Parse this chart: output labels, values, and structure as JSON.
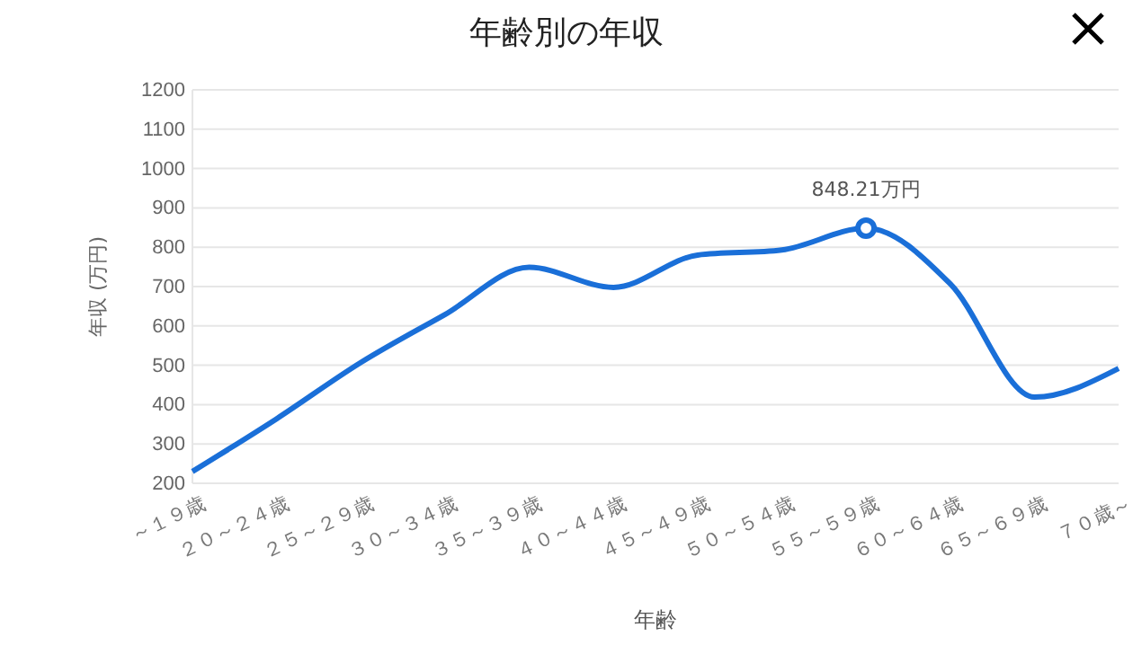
{
  "chart_data": {
    "type": "line",
    "title": "年齢別の年収",
    "xlabel": "年齢",
    "ylabel": "年収 (万円)",
    "categories": [
      "～１９歳",
      "２０～２４歳",
      "２５～２９歳",
      "３０～３４歳",
      "３５～３９歳",
      "４０～４４歳",
      "４５～４９歳",
      "５０～５４歳",
      "５５～５９歳",
      "６０～６４歳",
      "６５～６９歳",
      "７０歳～"
    ],
    "series": [
      {
        "color": "#1a6fd8",
        "values": [
          230,
          364,
          507,
          629,
          749,
          698,
          780,
          793,
          848.21,
          707,
          419,
          492
        ]
      }
    ],
    "ylim": [
      200,
      1200
    ],
    "yticks": [
      200,
      300,
      400,
      500,
      600,
      700,
      800,
      900,
      1000,
      1100,
      1200
    ],
    "grid": "y",
    "annotations": [
      {
        "text": "848.21万円",
        "x": "５５～５９歳",
        "y": 848.21
      }
    ]
  }
}
